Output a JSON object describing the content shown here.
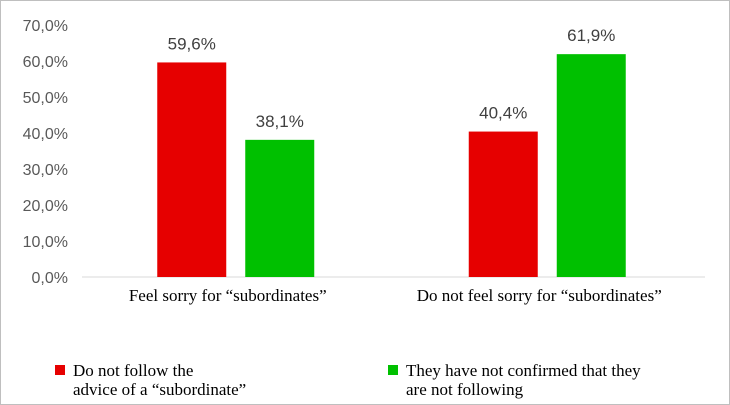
{
  "chart_data": {
    "type": "bar",
    "categories": [
      "Feel sorry for “subordinates”",
      "Do not feel sorry for “subordinates”"
    ],
    "series": [
      {
        "name": "Do not follow the advice of a “subordinate”",
        "values": [
          59.6,
          40.4
        ],
        "color": "#e60000"
      },
      {
        "name": "They have not confirmed that they are not following",
        "values": [
          38.1,
          61.9
        ],
        "color": "#00c000"
      }
    ],
    "data_labels": [
      [
        "59,6%",
        "40,4%"
      ],
      [
        "38,1%",
        "61,9%"
      ]
    ],
    "yticks": [
      "0,0%",
      "10,0%",
      "20,0%",
      "30,0%",
      "40,0%",
      "50,0%",
      "60,0%",
      "70,0%"
    ],
    "ylim": [
      0,
      70
    ],
    "grid": false,
    "legend_position": "bottom",
    "legend_lines": [
      [
        "Do not follow the",
        "advice of a “subordinate”"
      ],
      [
        "They have not confirmed that they",
        "are not following"
      ]
    ]
  }
}
